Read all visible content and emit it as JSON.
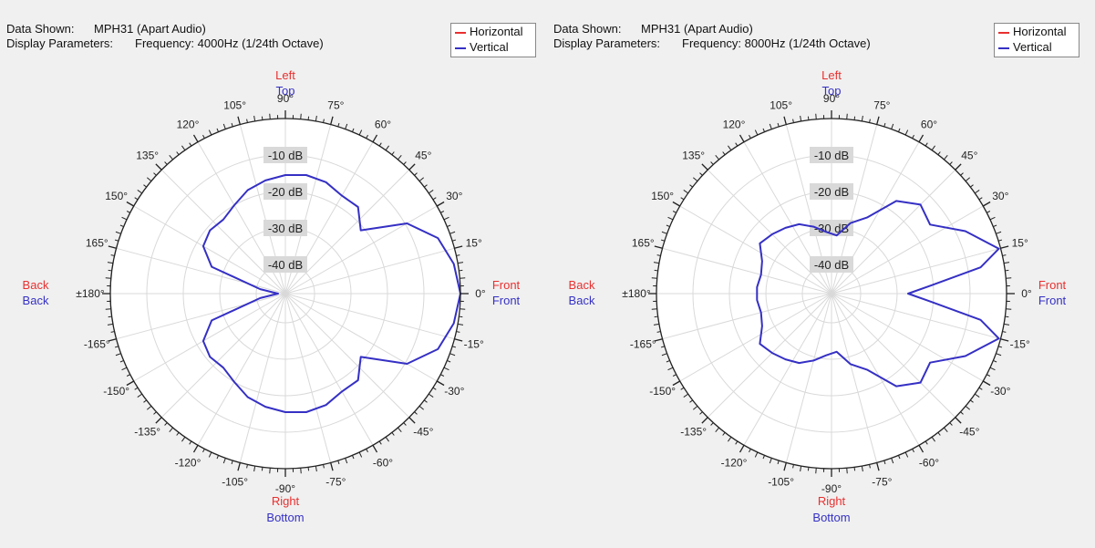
{
  "colors": {
    "horizontal": "#e8302f",
    "vertical": "#3530c4"
  },
  "chart_data": [
    {
      "type": "polar-line",
      "info": {
        "data_label": "Data Shown:",
        "data_value": "MPH31 (Apart Audio)",
        "params_label": "Display Parameters:",
        "params_value": "Frequency: 4000Hz (1/24th Octave)"
      },
      "legend": [
        {
          "name": "Horizontal",
          "color": "#e8302f"
        },
        {
          "name": "Vertical",
          "color": "#3530c4"
        }
      ],
      "direction_labels": {
        "top_primary": "Left",
        "top_secondary": "Top",
        "bottom_primary": "Right",
        "bottom_secondary": "Bottom",
        "left_primary": "Back",
        "left_secondary": "Back",
        "right_primary": "Front",
        "right_secondary": "Front"
      },
      "angle_labels": [
        "0°",
        "15°",
        "30°",
        "45°",
        "60°",
        "75°",
        "90°",
        "105°",
        "120°",
        "135°",
        "150°",
        "165°",
        "±180°",
        "-165°",
        "-150°",
        "-135°",
        "-120°",
        "-105°",
        "-90°",
        "-75°",
        "-60°",
        "-45°",
        "-30°",
        "-15°"
      ],
      "ring_labels": [
        "-10 dB",
        "-20 dB",
        "-30 dB",
        "-40 dB"
      ],
      "radial_range_db": [
        -48,
        0
      ],
      "series": [
        {
          "name": "Vertical",
          "color": "#3530c4",
          "points": [
            {
              "angle": 0,
              "db": 0.0
            },
            {
              "angle": 10,
              "db": -1.1
            },
            {
              "angle": 20,
              "db": -3.5
            },
            {
              "angle": 30,
              "db": -9.5
            },
            {
              "angle": 40,
              "db": -21.0
            },
            {
              "angle": 50,
              "db": -17.0
            },
            {
              "angle": 60,
              "db": -17.0
            },
            {
              "angle": 70,
              "db": -15.5
            },
            {
              "angle": 80,
              "db": -15.0
            },
            {
              "angle": 90,
              "db": -15.5
            },
            {
              "angle": 100,
              "db": -16.5
            },
            {
              "angle": 110,
              "db": -17.8
            },
            {
              "angle": 120,
              "db": -20.0
            },
            {
              "angle": 130,
              "db": -21.5
            },
            {
              "angle": 140,
              "db": -21.0
            },
            {
              "angle": 150,
              "db": -22.0
            },
            {
              "angle": 160,
              "db": -26.5
            },
            {
              "angle": 170,
              "db": -41.0
            },
            {
              "angle": 180,
              "db": -46.0
            },
            {
              "angle": -170,
              "db": -41.0
            },
            {
              "angle": -160,
              "db": -26.5
            },
            {
              "angle": -150,
              "db": -22.0
            },
            {
              "angle": -140,
              "db": -21.0
            },
            {
              "angle": -130,
              "db": -21.5
            },
            {
              "angle": -120,
              "db": -20.0
            },
            {
              "angle": -110,
              "db": -17.8
            },
            {
              "angle": -100,
              "db": -16.5
            },
            {
              "angle": -90,
              "db": -15.5
            },
            {
              "angle": -80,
              "db": -15.0
            },
            {
              "angle": -70,
              "db": -15.5
            },
            {
              "angle": -60,
              "db": -17.0
            },
            {
              "angle": -50,
              "db": -17.0
            },
            {
              "angle": -40,
              "db": -21.0
            },
            {
              "angle": -30,
              "db": -9.5
            },
            {
              "angle": -20,
              "db": -3.5
            },
            {
              "angle": -10,
              "db": -1.1
            }
          ]
        }
      ]
    },
    {
      "type": "polar-line",
      "info": {
        "data_label": "Data Shown:",
        "data_value": "MPH31 (Apart Audio)",
        "params_label": "Display Parameters:",
        "params_value": "Frequency: 8000Hz (1/24th Octave)"
      },
      "legend": [
        {
          "name": "Horizontal",
          "color": "#e8302f"
        },
        {
          "name": "Vertical",
          "color": "#3530c4"
        }
      ],
      "direction_labels": {
        "top_primary": "Left",
        "top_secondary": "Top",
        "bottom_primary": "Right",
        "bottom_secondary": "Bottom",
        "left_primary": "Back",
        "left_secondary": "Back",
        "right_primary": "Front",
        "right_secondary": "Front"
      },
      "angle_labels": [
        "0°",
        "15°",
        "30°",
        "45°",
        "60°",
        "75°",
        "90°",
        "105°",
        "120°",
        "135°",
        "150°",
        "165°",
        "±180°",
        "-165°",
        "-150°",
        "-135°",
        "-120°",
        "-105°",
        "-90°",
        "-75°",
        "-60°",
        "-45°",
        "-30°",
        "-15°"
      ],
      "ring_labels": [
        "-10 dB",
        "-20 dB",
        "-30 dB",
        "-40 dB"
      ],
      "radial_range_db": [
        -48,
        0
      ],
      "series": [
        {
          "name": "Vertical",
          "color": "#3530c4",
          "points": [
            {
              "angle": 0,
              "db": -27.0
            },
            {
              "angle": 5,
              "db": -20.0
            },
            {
              "angle": 10,
              "db": -6.5
            },
            {
              "angle": 15,
              "db": -0.5
            },
            {
              "angle": 25,
              "db": -7.5
            },
            {
              "angle": 35,
              "db": -15.0
            },
            {
              "angle": 45,
              "db": -13.5
            },
            {
              "angle": 55,
              "db": -17.0
            },
            {
              "angle": 65,
              "db": -25.0
            },
            {
              "angle": 75,
              "db": -28.0
            },
            {
              "angle": 85,
              "db": -32.0
            },
            {
              "angle": 95,
              "db": -31.0
            },
            {
              "angle": 105,
              "db": -29.0
            },
            {
              "angle": 115,
              "db": -27.0
            },
            {
              "angle": 125,
              "db": -26.0
            },
            {
              "angle": 135,
              "db": -25.0
            },
            {
              "angle": 145,
              "db": -24.0
            },
            {
              "angle": 155,
              "db": -27.0
            },
            {
              "angle": 165,
              "db": -28.0
            },
            {
              "angle": 175,
              "db": -27.5
            },
            {
              "angle": -175,
              "db": -27.5
            },
            {
              "angle": -165,
              "db": -28.0
            },
            {
              "angle": -155,
              "db": -27.0
            },
            {
              "angle": -145,
              "db": -24.0
            },
            {
              "angle": -135,
              "db": -25.0
            },
            {
              "angle": -125,
              "db": -26.0
            },
            {
              "angle": -115,
              "db": -27.0
            },
            {
              "angle": -105,
              "db": -29.0
            },
            {
              "angle": -95,
              "db": -31.0
            },
            {
              "angle": -85,
              "db": -32.0
            },
            {
              "angle": -75,
              "db": -28.0
            },
            {
              "angle": -65,
              "db": -25.0
            },
            {
              "angle": -55,
              "db": -17.0
            },
            {
              "angle": -45,
              "db": -13.5
            },
            {
              "angle": -35,
              "db": -15.0
            },
            {
              "angle": -25,
              "db": -7.5
            },
            {
              "angle": -15,
              "db": -0.5
            },
            {
              "angle": -10,
              "db": -6.5
            },
            {
              "angle": -5,
              "db": -20.0
            }
          ]
        }
      ]
    }
  ]
}
